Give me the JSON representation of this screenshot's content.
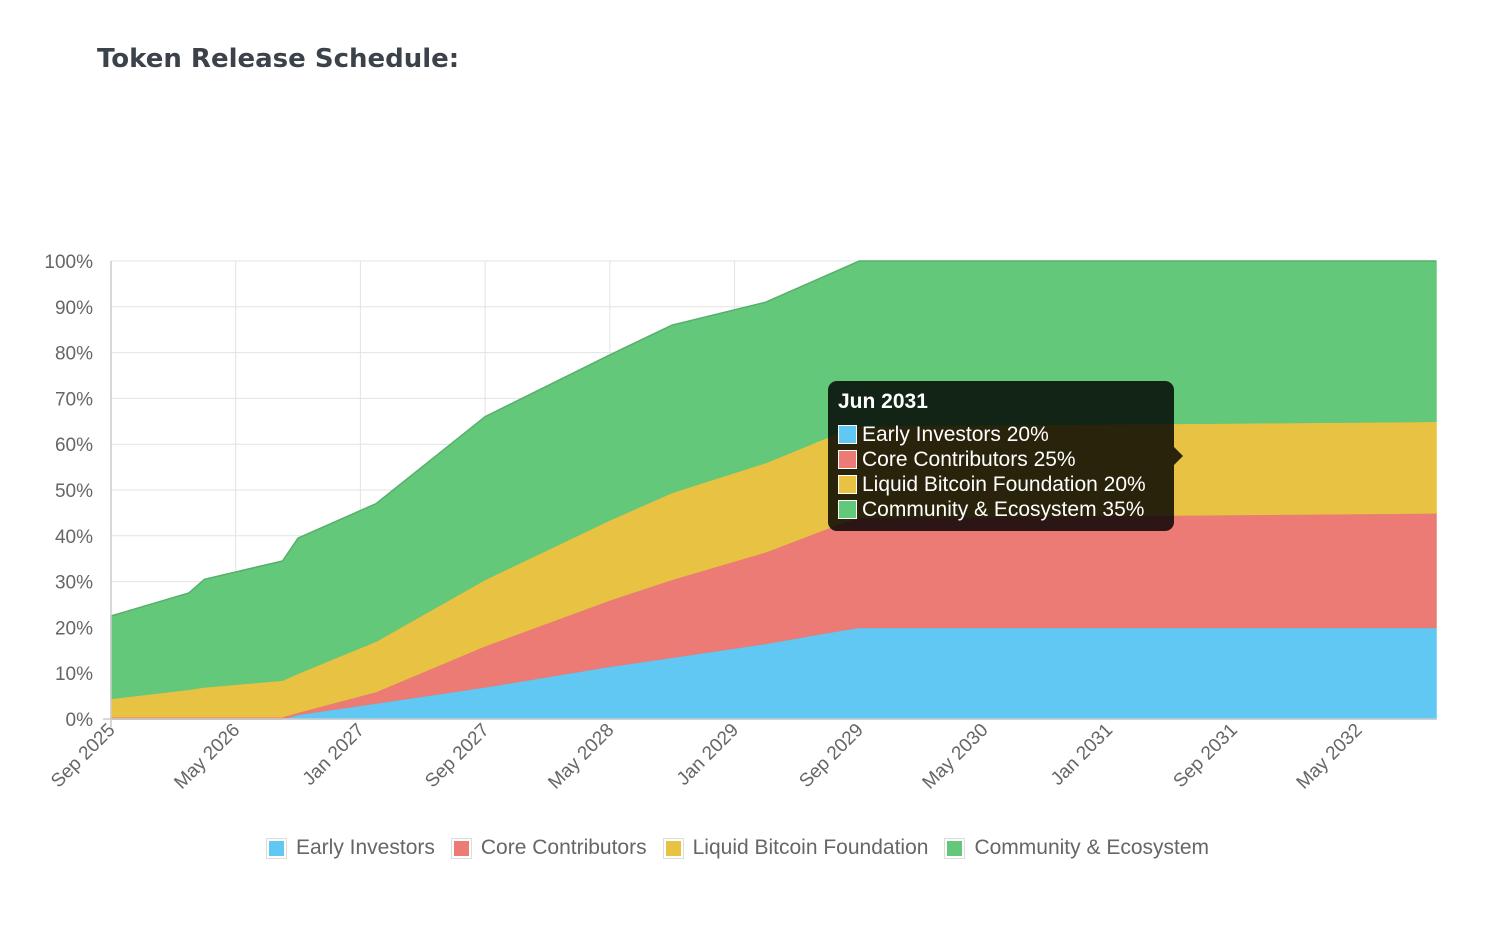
{
  "page": {
    "title": "Token Release Schedule:"
  },
  "colors": {
    "early_investors": "#60c8f2",
    "core_contributors": "#ec7b75",
    "liquid_bitcoin_foundation": "#e8c343",
    "community_ecosystem": "#63c87a"
  },
  "legend": [
    {
      "label": "Early Investors",
      "color": "#60c8f2"
    },
    {
      "label": "Core Contributors",
      "color": "#ec7b75"
    },
    {
      "label": "Liquid Bitcoin Foundation",
      "color": "#e8c343"
    },
    {
      "label": "Community & Ecosystem",
      "color": "#63c87a"
    }
  ],
  "tooltip": {
    "title": "Jun 2031",
    "rows": [
      {
        "label": "Early Investors 20%",
        "color": "#60c8f2"
      },
      {
        "label": "Core Contributors 25%",
        "color": "#ec7b75"
      },
      {
        "label": "Liquid Bitcoin Foundation 20%",
        "color": "#e8c343"
      },
      {
        "label": "Community & Ecosystem 35%",
        "color": "#63c87a"
      }
    ]
  },
  "chart_data": {
    "type": "area",
    "stacked": true,
    "title": "Token Release Schedule:",
    "xlabel": "",
    "ylabel": "",
    "ylim": [
      0,
      100
    ],
    "xlim_months": [
      0,
      85
    ],
    "x_tick_labels": [
      "Sep 2025",
      "May 2026",
      "Jan 2027",
      "Sep 2027",
      "May 2028",
      "Jan 2029",
      "Sep 2029",
      "May 2030",
      "Jan 2031",
      "Sep 2031",
      "May 2032"
    ],
    "x_tick_months": [
      0,
      8,
      16,
      24,
      32,
      40,
      48,
      56,
      64,
      72,
      80
    ],
    "y_tick_labels": [
      "0%",
      "10%",
      "20%",
      "30%",
      "40%",
      "50%",
      "60%",
      "70%",
      "80%",
      "90%",
      "100%"
    ],
    "y_tick_values": [
      0,
      10,
      20,
      30,
      40,
      50,
      60,
      70,
      80,
      90,
      100
    ],
    "months": [
      0,
      5,
      6,
      11,
      12,
      17,
      24,
      32,
      36,
      42,
      47,
      48,
      85
    ],
    "series": [
      {
        "name": "Early Investors",
        "color": "#60c8f2",
        "values": [
          0,
          0,
          0,
          0,
          1,
          3.5,
          7,
          11.5,
          13.5,
          16.5,
          19.5,
          20,
          20
        ]
      },
      {
        "name": "Core Contributors",
        "color": "#ec7b75",
        "values": [
          0.5,
          0.5,
          0.5,
          0.5,
          0.5,
          2.5,
          9,
          14.5,
          17,
          20,
          23.5,
          24,
          25
        ]
      },
      {
        "name": "Liquid Bitcoin Foundation",
        "color": "#e8c343",
        "values": [
          4,
          6,
          6.5,
          8,
          8.5,
          11,
          14.5,
          17.5,
          19,
          19.5,
          20,
          20,
          20
        ]
      },
      {
        "name": "Community & Ecosystem",
        "color": "#63c87a",
        "values": [
          18,
          21,
          23.5,
          26,
          29.5,
          30,
          35.5,
          36,
          36.5,
          35,
          35.5,
          36,
          35
        ]
      }
    ]
  }
}
